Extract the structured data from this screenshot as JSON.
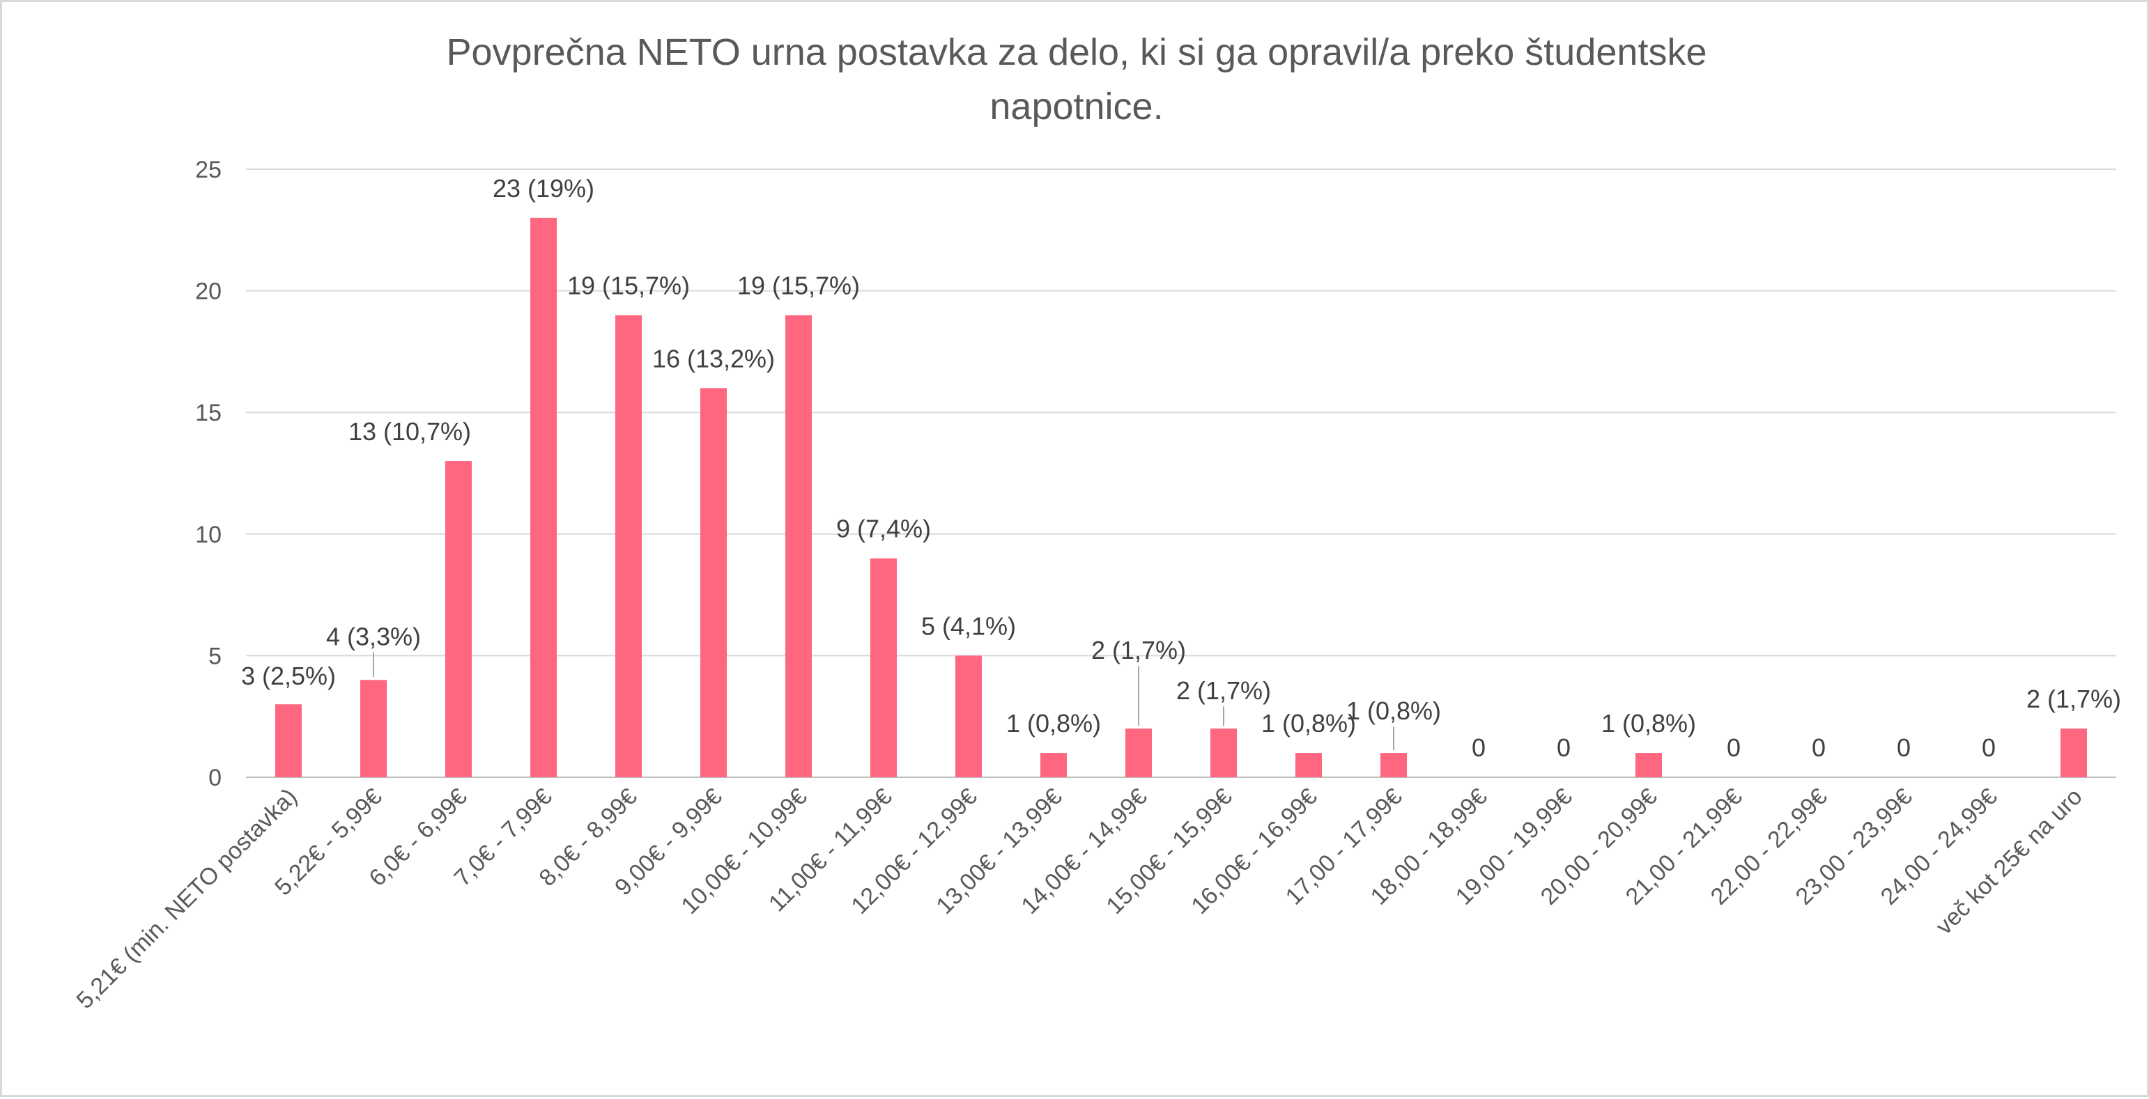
{
  "chart_data": {
    "type": "bar",
    "title": "Povprečna NETO urna postavka za delo, ki si ga opravil/a preko študentske napotnice.",
    "title_lines": [
      "Povprečna NETO urna postavka za delo, ki si ga opravil/a preko študentske",
      "napotnice."
    ],
    "xlabel": "",
    "ylabel": "",
    "ylim": [
      0,
      25
    ],
    "yticks": [
      0,
      5,
      10,
      15,
      20,
      25
    ],
    "grid": true,
    "legend": "none",
    "bar_color": "#ff6680",
    "categories": [
      "5,21€ (min. NETO postavka)",
      "5,22€ - 5,99€",
      "6,0€ - 6,99€",
      "7,0€ - 7,99€",
      "8,0€ - 8,99€",
      "9,00€ - 9,99€",
      "10,00€ - 10,99€",
      "11,00€ - 11,99€",
      "12,00€ - 12,99€",
      "13,00€ - 13,99€",
      "14,00€ - 14,99€",
      "15,00€ - 15,99€",
      "16,00€ - 16,99€",
      "17,00 - 17,99€",
      "18,00 - 18,99€",
      "19,00 - 19,99€",
      "20,00 - 20,99€",
      "21,00 - 21,99€",
      "22,00 - 22,99€",
      "23,00 - 23,99€",
      "24,00 - 24,99€",
      "več kot 25€ na uro"
    ],
    "values": [
      3,
      4,
      13,
      23,
      19,
      16,
      19,
      9,
      5,
      1,
      2,
      2,
      1,
      1,
      0,
      0,
      1,
      0,
      0,
      0,
      0,
      2
    ],
    "data_labels": [
      "3 (2,5%)",
      "4 (3,3%)",
      "13 (10,7%)",
      "23 (19%)",
      "19 (15,7%)",
      "16 (13,2%)",
      "19 (15,7%)",
      "9 (7,4%)",
      "5 (4,1%)",
      "1 (0,8%)",
      "2 (1,7%)",
      "2 (1,7%)",
      "1 (0,8%)",
      "1 (0,8%)",
      "0",
      "0",
      "1 (0,8%)",
      "0",
      "0",
      "0",
      "0",
      "2 (1,7%)"
    ]
  }
}
